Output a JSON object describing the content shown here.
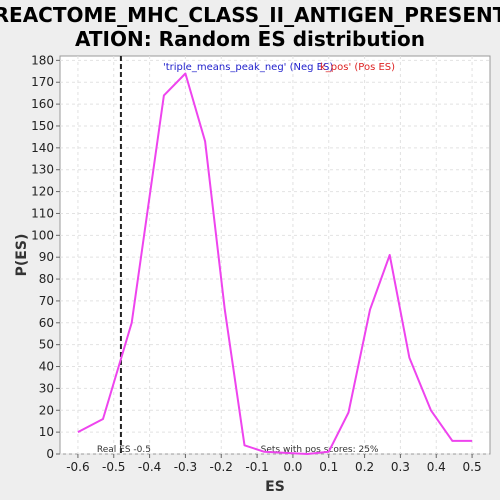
{
  "chart_data": {
    "type": "line",
    "title_line1": "REACTOME_MHC_CLASS_II_ANTIGEN_PRESENT",
    "title_line2": "ATION: Random ES distribution",
    "xlabel": "ES",
    "ylabel": "P(ES)",
    "xlim": [
      -0.65,
      0.55
    ],
    "ylim": [
      0,
      182
    ],
    "x_ticks": [
      -0.6,
      -0.5,
      -0.4,
      -0.3,
      -0.2,
      -0.1,
      0.0,
      0.1,
      0.2,
      0.3,
      0.4,
      0.5
    ],
    "x_tick_labels": [
      "-0.6",
      "-0.5",
      "-0.4",
      "-0.3",
      "-0.2",
      "-0.1",
      "0.0",
      "0.1",
      "0.2",
      "0.3",
      "0.4",
      "0.5"
    ],
    "y_ticks": [
      0,
      10,
      20,
      30,
      40,
      50,
      60,
      70,
      80,
      90,
      100,
      110,
      120,
      130,
      140,
      150,
      160,
      170,
      180
    ],
    "y_tick_labels": [
      "0",
      "10",
      "20",
      "30",
      "40",
      "50",
      "60",
      "70",
      "80",
      "90",
      "100",
      "110",
      "120",
      "130",
      "140",
      "150",
      "160",
      "170",
      "180"
    ],
    "grid": true,
    "series": [
      {
        "color": "#ee44ee",
        "x": [
          -0.6,
          -0.53,
          -0.45,
          -0.36,
          -0.3,
          -0.245,
          -0.19,
          -0.135,
          -0.08,
          0.04,
          0.1,
          0.155,
          0.215,
          0.27,
          0.325,
          0.385,
          0.445,
          0.5
        ],
        "y": [
          10,
          16,
          60,
          164,
          174,
          143,
          66,
          4,
          1,
          0,
          1,
          19,
          66,
          91,
          44,
          20,
          6,
          6
        ]
      }
    ],
    "legend": {
      "neg_text": "'triple_means_peak_neg' (Neg ES)",
      "pos_text": "k_pos' (Pos ES)",
      "neg_color": "#2222cc",
      "pos_color": "#dd2222",
      "placement": "top-center"
    },
    "real_es": {
      "value": -0.48,
      "label": "Real ES -0.5"
    },
    "annotation": "Sets with pos scores: 25%"
  }
}
